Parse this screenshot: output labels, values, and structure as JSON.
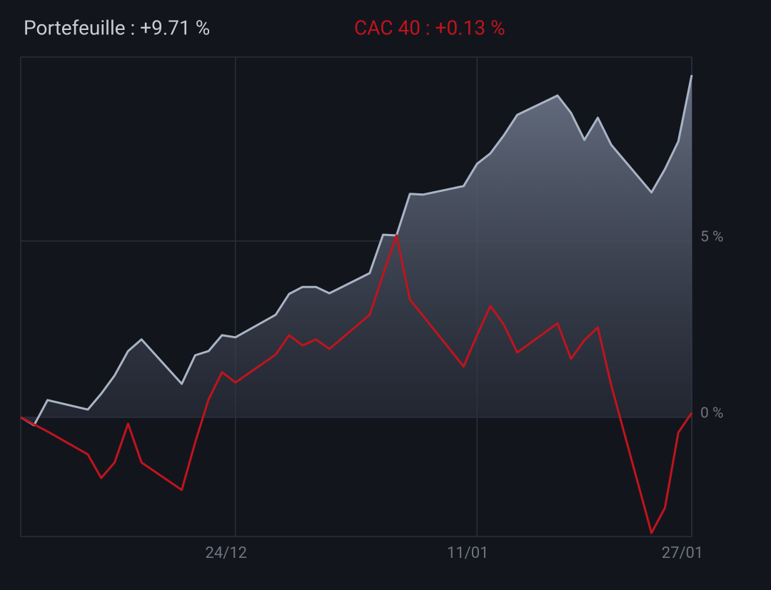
{
  "chart_data": {
    "type": "line",
    "x": [
      "08/12",
      "09/12",
      "10/12",
      "13/12",
      "14/12",
      "15/12",
      "16/12",
      "17/12",
      "20/12",
      "21/12",
      "22/12",
      "23/12",
      "24/12",
      "27/12",
      "28/12",
      "29/12",
      "30/12",
      "31/12",
      "03/01",
      "04/01",
      "05/01",
      "06/01",
      "07/01",
      "10/01",
      "11/01",
      "12/01",
      "13/01",
      "14/01",
      "17/01",
      "18/01",
      "19/01",
      "20/01",
      "21/01",
      "24/01",
      "25/01",
      "26/01",
      "27/01"
    ],
    "series": [
      {
        "name": "Portefeuille : +9.71 %",
        "color": "#a9b4c4",
        "area": true,
        "values": [
          0,
          -0.22,
          0.49,
          0.22,
          0.67,
          1.19,
          1.88,
          2.21,
          0.95,
          1.76,
          1.88,
          2.33,
          2.27,
          2.91,
          3.5,
          3.7,
          3.7,
          3.52,
          4.09,
          5.18,
          5.16,
          6.34,
          6.32,
          6.56,
          7.19,
          7.49,
          8.0,
          8.58,
          9.13,
          8.64,
          7.87,
          8.5,
          7.73,
          6.38,
          7.04,
          7.83,
          9.71
        ]
      },
      {
        "name": "CAC 40 : +0.13 %",
        "color": "#c0141c",
        "values": [
          0,
          -0.2,
          -0.4,
          -1.05,
          -1.72,
          -1.28,
          -0.18,
          -1.28,
          -2.06,
          -0.71,
          0.51,
          1.28,
          0.99,
          1.78,
          2.33,
          2.04,
          2.21,
          1.94,
          2.91,
          4.05,
          5.16,
          3.34,
          2.87,
          1.44,
          2.33,
          3.16,
          2.63,
          1.84,
          2.67,
          1.66,
          2.19,
          2.55,
          0.91,
          -3.28,
          -2.57,
          -0.43,
          0.13
        ]
      }
    ],
    "xlim": [
      "08/12",
      "27/01"
    ],
    "xticks": [
      "24/12",
      "11/01",
      "27/01"
    ],
    "ylim": [
      -3.38,
      10.22
    ],
    "yticks": [
      {
        "value": 0,
        "label": "0 %"
      },
      {
        "value": 5,
        "label": "5 %"
      }
    ],
    "grid": true
  }
}
